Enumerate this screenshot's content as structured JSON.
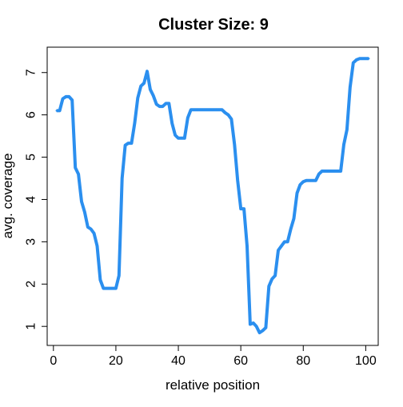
{
  "chart_data": {
    "type": "line",
    "title": "Cluster Size: 9",
    "xlabel": "relative position",
    "ylabel": "avg. coverage",
    "xlim": [
      -2,
      104
    ],
    "ylim": [
      0.55,
      7.6
    ],
    "x_ticks": [
      0,
      20,
      40,
      60,
      80,
      100
    ],
    "y_ticks": [
      1,
      2,
      3,
      4,
      5,
      6,
      7
    ],
    "grid": false,
    "line_color": "#2b8fef",
    "series": [
      {
        "x": [
          1,
          2,
          3,
          4,
          5,
          6,
          7,
          8,
          9,
          10,
          11,
          12,
          13,
          14,
          15,
          16,
          17,
          18,
          19,
          20,
          21,
          22,
          23,
          24,
          25,
          26,
          27,
          28,
          29,
          30,
          31,
          32,
          33,
          34,
          35,
          36,
          37,
          38,
          39,
          40,
          41,
          42,
          43,
          44,
          45,
          46,
          47,
          48,
          49,
          50,
          51,
          52,
          53,
          54,
          55,
          56,
          57,
          58,
          59,
          60,
          61,
          62,
          63,
          64,
          65,
          66,
          67,
          68,
          69,
          70,
          71,
          72,
          73,
          74,
          75,
          76,
          77,
          78,
          79,
          80,
          81,
          82,
          83,
          84,
          85,
          86,
          87,
          88,
          89,
          90,
          91,
          92,
          93,
          94,
          95,
          96,
          97,
          98,
          99,
          100,
          101
        ],
        "y": [
          6.1,
          6.1,
          6.38,
          6.43,
          6.43,
          6.35,
          4.75,
          4.6,
          3.95,
          3.7,
          3.35,
          3.3,
          3.2,
          2.9,
          2.1,
          1.9,
          1.9,
          1.9,
          1.9,
          1.9,
          2.2,
          4.5,
          5.28,
          5.33,
          5.33,
          5.8,
          6.4,
          6.68,
          6.75,
          7.03,
          6.6,
          6.45,
          6.25,
          6.2,
          6.2,
          6.27,
          6.27,
          5.8,
          5.52,
          5.45,
          5.45,
          5.45,
          5.93,
          6.12,
          6.12,
          6.12,
          6.12,
          6.12,
          6.12,
          6.12,
          6.12,
          6.12,
          6.12,
          6.12,
          6.05,
          6.0,
          5.9,
          5.3,
          4.45,
          3.78,
          3.78,
          2.9,
          1.05,
          1.08,
          1.0,
          0.85,
          0.9,
          0.97,
          1.95,
          2.12,
          2.2,
          2.8,
          2.9,
          3.0,
          3.0,
          3.3,
          3.55,
          4.15,
          4.35,
          4.42,
          4.45,
          4.45,
          4.45,
          4.45,
          4.6,
          4.67,
          4.67,
          4.67,
          4.67,
          4.67,
          4.67,
          4.67,
          5.3,
          5.65,
          6.65,
          7.23,
          7.3,
          7.33,
          7.33,
          7.33,
          7.33
        ]
      }
    ]
  }
}
